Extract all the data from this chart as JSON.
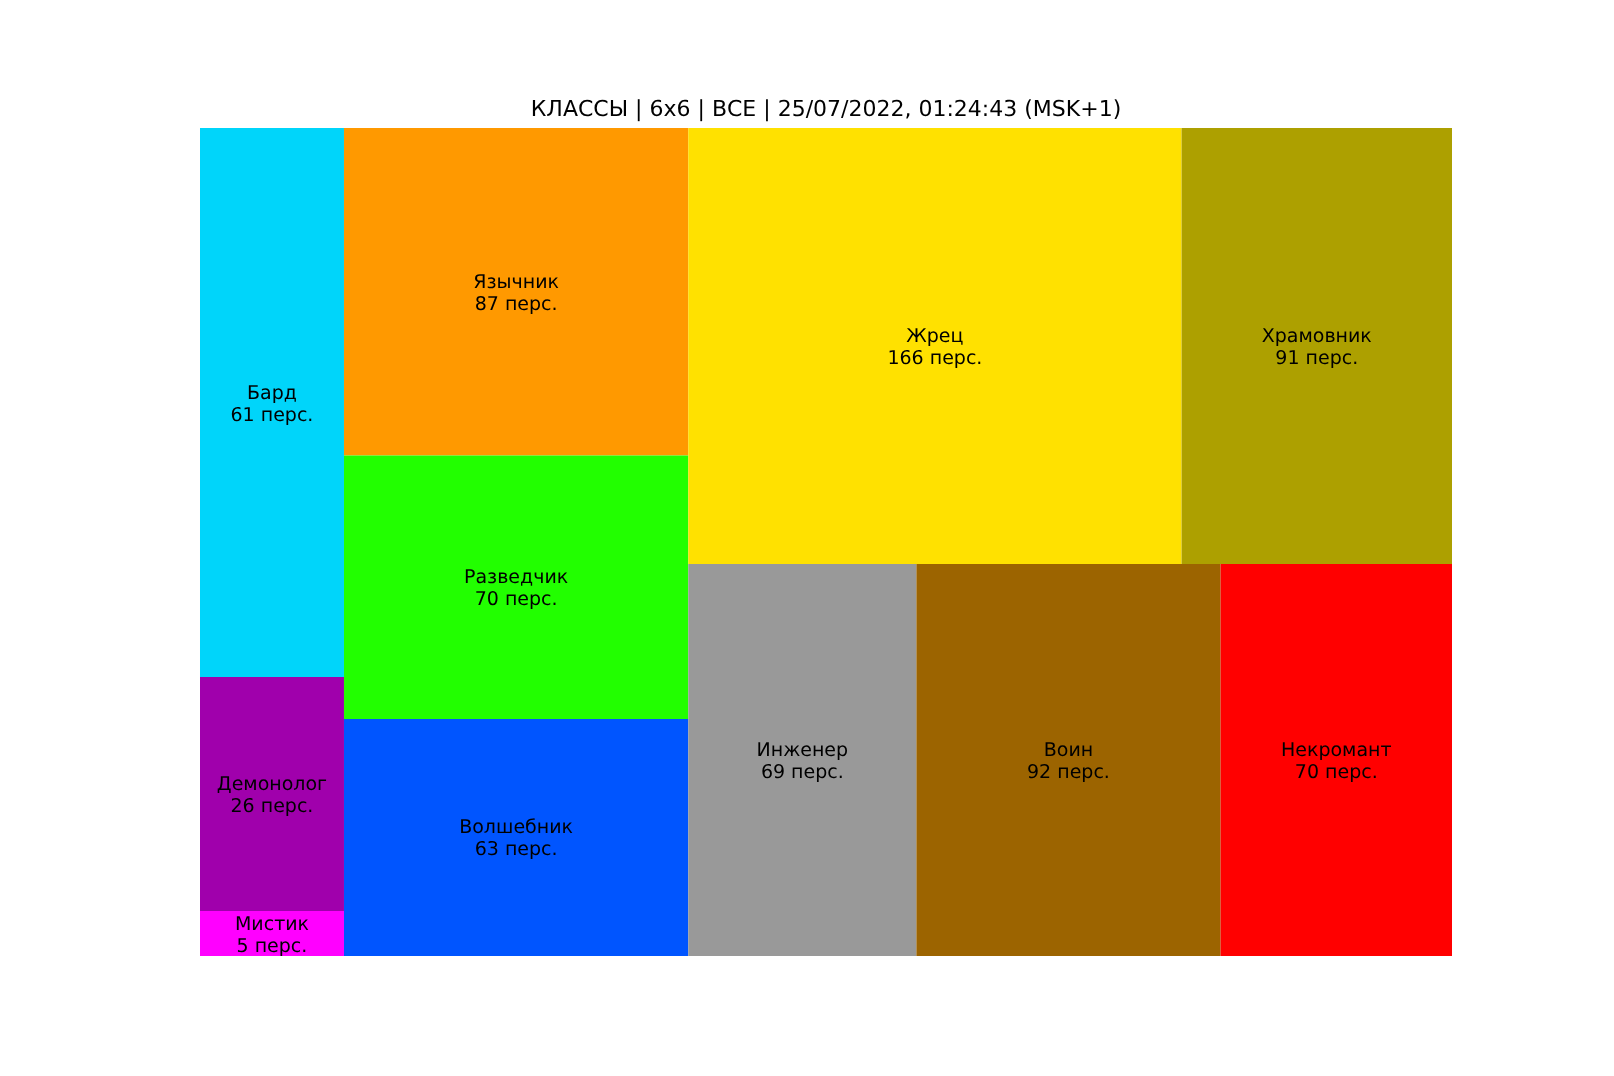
{
  "chart_data": {
    "type": "other",
    "title": "КЛАССЫ | 6x6 | ВСЕ | 25/07/2022, 01:24:43 (MSK+1)",
    "categories": [
      "Бард",
      "Демонолог",
      "Мистик",
      "Язычник",
      "Разведчик",
      "Волшебник",
      "Жрец",
      "Храмовник",
      "Инженер",
      "Воин",
      "Некромант"
    ],
    "values": [
      61,
      26,
      5,
      87,
      70,
      63,
      166,
      91,
      69,
      92,
      70
    ],
    "value_labels": [
      "61 перс.",
      "26 перс.",
      "5 перс.",
      "87 перс.",
      "70 перс.",
      "63 перс.",
      "166 перс.",
      "91 перс.",
      "69 перс.",
      "92 перс.",
      "70 перс."
    ],
    "colors": [
      "#00d5fa",
      "#a000ac",
      "#ff00ff",
      "#ff9900",
      "#22ff00",
      "#0055ff",
      "#ffe100",
      "#ada000",
      "#999999",
      "#9c6400",
      "#ff0000"
    ]
  }
}
